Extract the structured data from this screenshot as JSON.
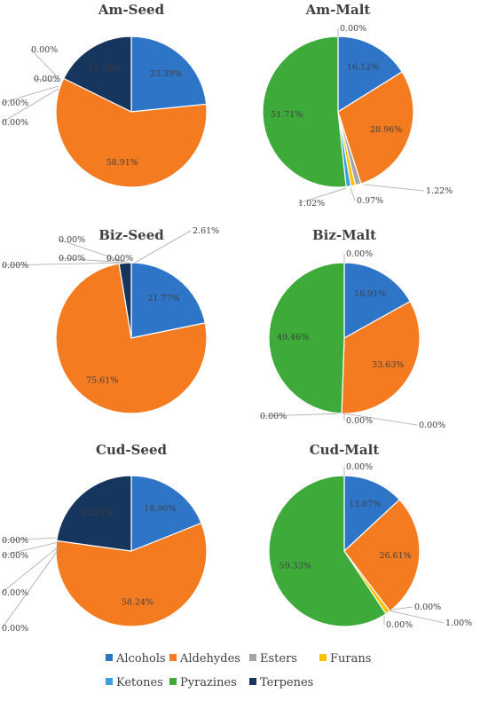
{
  "legend": {
    "items": [
      {
        "label": "Alcohols",
        "color": "#2E75C8"
      },
      {
        "label": "Aldehydes",
        "color": "#F47B20"
      },
      {
        "label": "Esters",
        "color": "#A5A5A5"
      },
      {
        "label": "Furans",
        "color": "#FFC000"
      },
      {
        "label": "Ketones",
        "color": "#3A9FE0"
      },
      {
        "label": "Pyrazines",
        "color": "#3DAA3A"
      },
      {
        "label": "Terpenes",
        "color": "#17365D"
      }
    ]
  },
  "chart_data": [
    {
      "type": "pie",
      "title": "Am-Seed",
      "categories": [
        "Alcohols",
        "Aldehydes",
        "Esters",
        "Furans",
        "Ketones",
        "Pyrazines",
        "Terpenes"
      ],
      "values": [
        23.39,
        58.91,
        0.0,
        0.0,
        0.0,
        0.0,
        17.7
      ],
      "labels": [
        "23.39%",
        "58.91%",
        "0.00%",
        "0.00%",
        "0.00%",
        "0.00%",
        "17.70%"
      ]
    },
    {
      "type": "pie",
      "title": "Am-Malt",
      "categories": [
        "Alcohols",
        "Aldehydes",
        "Esters",
        "Furans",
        "Ketones",
        "Pyrazines",
        "Terpenes"
      ],
      "values": [
        16.12,
        28.96,
        1.22,
        0.97,
        1.02,
        51.71,
        0.0
      ],
      "labels": [
        "16.12%",
        "28.96%",
        "1.22%",
        "0.97%",
        "1.02%",
        "51.71%",
        "0.00%"
      ]
    },
    {
      "type": "pie",
      "title": "Biz-Seed",
      "categories": [
        "Alcohols",
        "Aldehydes",
        "Esters",
        "Furans",
        "Ketones",
        "Pyrazines",
        "Terpenes"
      ],
      "values": [
        21.77,
        75.61,
        0.0,
        0.0,
        0.0,
        0.0,
        2.61
      ],
      "labels": [
        "21.77%",
        "75.61%",
        "0.00%",
        "0.00%",
        "0.00%",
        "0.00%",
        "2.61%"
      ]
    },
    {
      "type": "pie",
      "title": "Biz-Malt",
      "categories": [
        "Alcohols",
        "Aldehydes",
        "Esters",
        "Furans",
        "Ketones",
        "Pyrazines",
        "Terpenes"
      ],
      "values": [
        16.91,
        33.63,
        0.0,
        0.0,
        0.0,
        49.46,
        0.0
      ],
      "labels": [
        "16.91%",
        "33.63%",
        "0.00%",
        "0.00%",
        "0.00%",
        "49.46%",
        "0.00%"
      ]
    },
    {
      "type": "pie",
      "title": "Cud-Seed",
      "categories": [
        "Alcohols",
        "Aldehydes",
        "Esters",
        "Furans",
        "Ketones",
        "Pyrazines",
        "Terpenes"
      ],
      "values": [
        18.96,
        58.24,
        0.0,
        0.0,
        0.0,
        0.0,
        22.81
      ],
      "labels": [
        "18.96%",
        "58.24%",
        "0.00%",
        "0.00%",
        "0.00%",
        "0.00%",
        "22.81%"
      ]
    },
    {
      "type": "pie",
      "title": "Cud-Malt",
      "categories": [
        "Alcohols",
        "Aldehydes",
        "Esters",
        "Furans",
        "Ketones",
        "Pyrazines",
        "Terpenes"
      ],
      "values": [
        13.07,
        26.61,
        0.0,
        1.0,
        0.0,
        59.33,
        0.0
      ],
      "labels": [
        "13.07%",
        "26.61%",
        "0.00%",
        "1.00%",
        "0.00%",
        "59.33%",
        "0.00%"
      ]
    }
  ]
}
